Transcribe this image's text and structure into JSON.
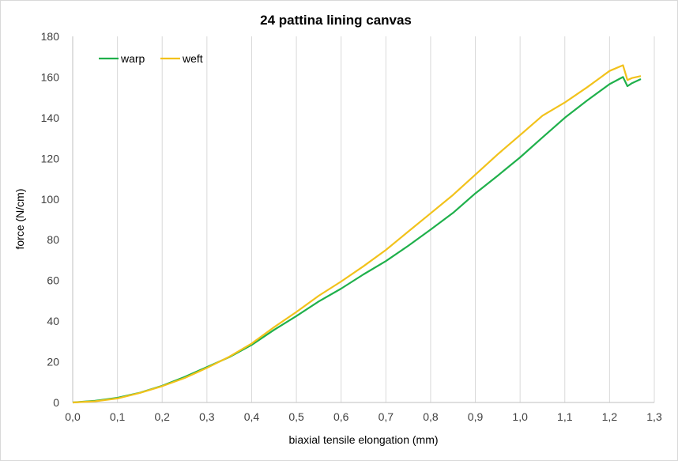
{
  "chart_data": {
    "type": "line",
    "title": "24 pattina lining canvas",
    "xlabel": "biaxial tensile elongation (mm)",
    "ylabel": "force (N/cm)",
    "xlim": [
      0,
      1.3
    ],
    "ylim": [
      0,
      180
    ],
    "x_ticks": [
      "0,0",
      "0,1",
      "0,2",
      "0,3",
      "0,4",
      "0,5",
      "0,6",
      "0,7",
      "0,8",
      "0,9",
      "1,0",
      "1,1",
      "1,2",
      "1,3"
    ],
    "y_ticks": [
      "0",
      "20",
      "40",
      "60",
      "80",
      "100",
      "120",
      "140",
      "160",
      "180"
    ],
    "grid": "vertical",
    "legend_position": "top-left",
    "series": [
      {
        "name": "warp",
        "color": "#1fb04b",
        "x": [
          0,
          0.05,
          0.1,
          0.15,
          0.2,
          0.25,
          0.3,
          0.35,
          0.4,
          0.45,
          0.5,
          0.55,
          0.6,
          0.65,
          0.7,
          0.75,
          0.8,
          0.85,
          0.9,
          0.95,
          1.0,
          1.05,
          1.1,
          1.15,
          1.2,
          1.23,
          1.24,
          1.25,
          1.27
        ],
        "y": [
          0,
          0.8,
          2.3,
          4.8,
          8.2,
          12.5,
          17.4,
          22.3,
          28.3,
          35.7,
          42.5,
          49.7,
          56.0,
          63.0,
          69.5,
          77.0,
          85.0,
          93.2,
          102.8,
          111.5,
          120.5,
          130.3,
          140.0,
          148.5,
          156.5,
          160.0,
          155.5,
          157.0,
          159.0
        ]
      },
      {
        "name": "weft",
        "color": "#f2c21b",
        "x": [
          0,
          0.05,
          0.1,
          0.15,
          0.2,
          0.25,
          0.3,
          0.35,
          0.4,
          0.45,
          0.5,
          0.55,
          0.6,
          0.65,
          0.7,
          0.75,
          0.8,
          0.85,
          0.9,
          0.95,
          1.0,
          1.05,
          1.1,
          1.15,
          1.2,
          1.23,
          1.24,
          1.25,
          1.27
        ],
        "y": [
          0,
          0.6,
          2.0,
          4.7,
          8.0,
          12.0,
          17.0,
          22.5,
          29.0,
          37.0,
          44.5,
          52.5,
          59.5,
          67.0,
          75.0,
          84.0,
          93.0,
          102.0,
          112.0,
          122.0,
          131.5,
          141.0,
          147.5,
          155.0,
          163.0,
          165.8,
          158.5,
          159.5,
          160.5
        ]
      }
    ]
  }
}
